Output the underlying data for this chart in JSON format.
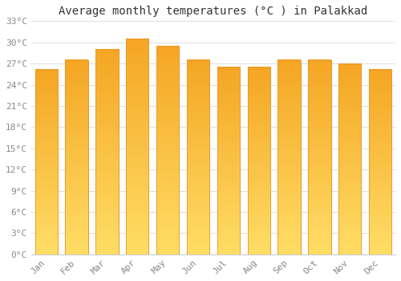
{
  "months": [
    "Jan",
    "Feb",
    "Mar",
    "Apr",
    "May",
    "Jun",
    "Jul",
    "Aug",
    "Sep",
    "Oct",
    "Nov",
    "Dec"
  ],
  "temperatures": [
    26.2,
    27.5,
    29.0,
    30.5,
    29.5,
    27.5,
    26.5,
    26.5,
    27.5,
    27.5,
    27.0,
    26.2
  ],
  "bar_color_top": "#F5A623",
  "bar_color_bottom": "#FFD966",
  "bar_edge_color": "#E8962A",
  "title": "Average monthly temperatures (°C ) in Palakkad",
  "ylim": [
    0,
    33
  ],
  "yticks": [
    0,
    3,
    6,
    9,
    12,
    15,
    18,
    21,
    24,
    27,
    30,
    33
  ],
  "ytick_labels": [
    "0°C",
    "3°C",
    "6°C",
    "9°C",
    "12°C",
    "15°C",
    "18°C",
    "21°C",
    "24°C",
    "27°C",
    "30°C",
    "33°C"
  ],
  "background_color": "#ffffff",
  "grid_color": "#dddddd",
  "title_fontsize": 10,
  "tick_fontsize": 8,
  "tick_color": "#888888",
  "bar_width": 0.75
}
